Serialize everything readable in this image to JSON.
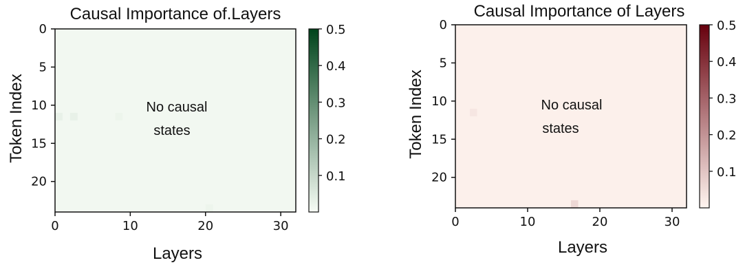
{
  "chart_data": [
    {
      "type": "heatmap",
      "title": "Causal Importance of.Layers",
      "xlabel": "Layers",
      "ylabel": "Token Index",
      "xlim": [
        0,
        32
      ],
      "ylim": [
        24,
        0
      ],
      "x_ticks": [
        "0",
        "10",
        "20",
        "30"
      ],
      "y_ticks": [
        "0",
        "5",
        "10",
        "15",
        "20"
      ],
      "colormap": "Greens",
      "color_low": "#f7fcf5",
      "color_high": "#00441b",
      "vmin": 0,
      "vmax": 0.5,
      "colorbar_ticks": [
        "0.5",
        "0.4",
        "0.3",
        "0.2",
        "0.1"
      ],
      "background_value": 0.01,
      "cells": [
        {
          "layer": 0,
          "token": 11,
          "value": 0.03
        },
        {
          "layer": 2,
          "token": 11,
          "value": 0.03
        },
        {
          "layer": 8,
          "token": 11,
          "value": 0.02
        },
        {
          "layer": 20,
          "token": 23,
          "value": 0.02
        }
      ],
      "annotation": [
        "No causal",
        "states"
      ]
    },
    {
      "type": "heatmap",
      "title": "Causal Importance of Layers",
      "xlabel": "Layers",
      "ylabel": "Token Index",
      "xlim": [
        0,
        32
      ],
      "ylim": [
        24,
        0
      ],
      "x_ticks": [
        "0",
        "10",
        "20",
        "30"
      ],
      "y_ticks": [
        "0",
        "5",
        "10",
        "15",
        "20"
      ],
      "colormap": "Reds",
      "color_low": "#fff5f0",
      "color_high": "#67000d",
      "vmin": 0,
      "vmax": 0.5,
      "colorbar_ticks": [
        "0.5",
        "0.4",
        "0.3",
        "0.2",
        "0.1"
      ],
      "background_value": 0.01,
      "cells": [
        {
          "layer": 2,
          "token": 11,
          "value": 0.03
        },
        {
          "layer": 16,
          "token": 23,
          "value": 0.06
        }
      ],
      "annotation": [
        "No causal",
        "states"
      ]
    }
  ]
}
